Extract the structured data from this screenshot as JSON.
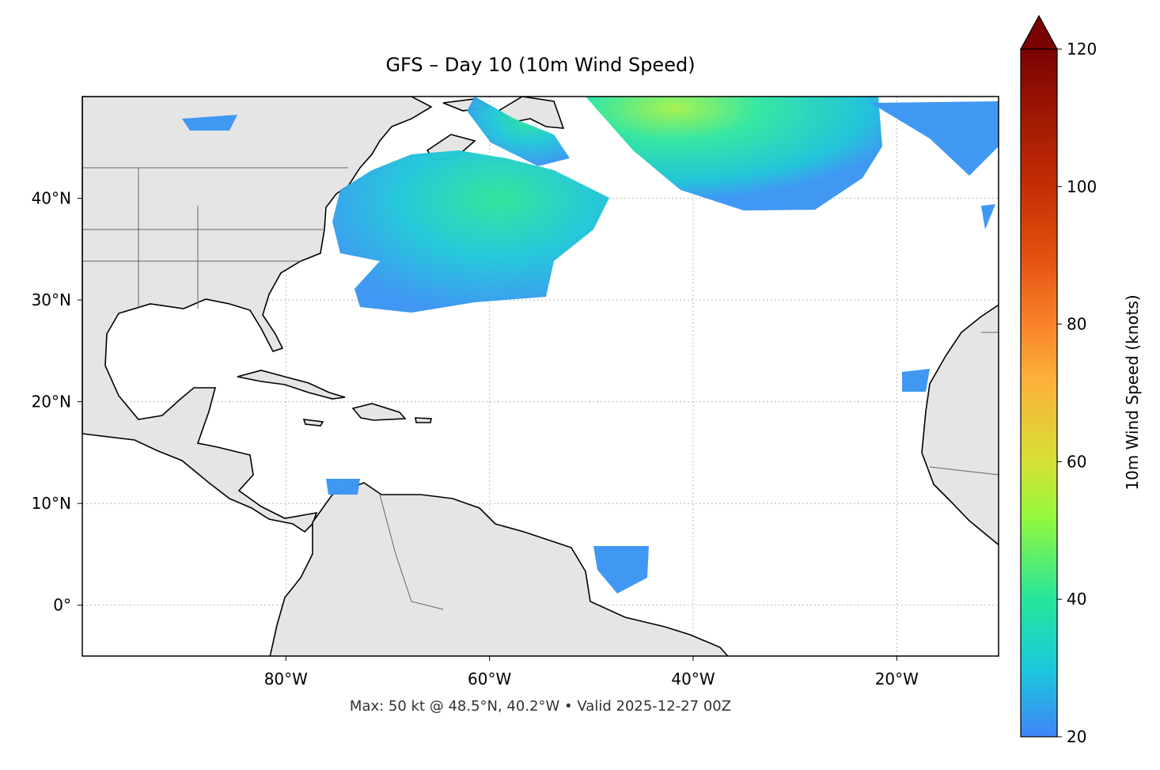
{
  "title": "GFS – Day 10 (10m Wind Speed)",
  "footer": "Max: 50 kt @ 48.5°N, 40.2°W • Valid 2025-12-27 00Z",
  "map": {
    "lonlim": [
      -100,
      -10
    ],
    "latlim": [
      -5,
      50
    ],
    "xticks": [
      {
        "value": -80,
        "label": "80°W"
      },
      {
        "value": -60,
        "label": "60°W"
      },
      {
        "value": -40,
        "label": "40°W"
      },
      {
        "value": -20,
        "label": "20°W"
      }
    ],
    "yticks": [
      {
        "value": 0,
        "label": "0°"
      },
      {
        "value": 10,
        "label": "10°N"
      },
      {
        "value": 20,
        "label": "20°N"
      },
      {
        "value": 30,
        "label": "30°N"
      },
      {
        "value": 40,
        "label": "40°N"
      }
    ],
    "grid": true
  },
  "colorbar": {
    "label": "10m Wind Speed (knots)",
    "lim": [
      20,
      120
    ],
    "ticks": [
      20,
      40,
      60,
      80,
      100,
      120
    ],
    "extend": "max"
  }
}
